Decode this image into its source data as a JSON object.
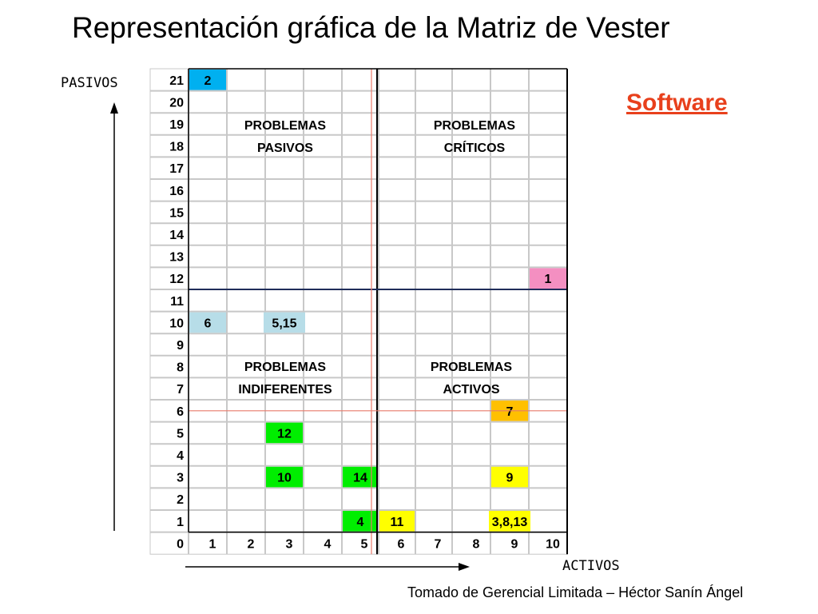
{
  "title": "Representación gráfica de la Matriz de Vester",
  "subtitle": "Software",
  "source": "Tomado de Gerencial Limitada – Héctor Sanín Ángel",
  "chart_data": {
    "type": "scatter",
    "title": "Representación gráfica de la Matriz de Vester",
    "xlabel": "ACTIVOS",
    "ylabel": "PASIVOS",
    "xlim": [
      0,
      10
    ],
    "ylim": [
      0,
      21
    ],
    "x_ticks": [
      "0",
      "1",
      "2",
      "3",
      "4",
      "5",
      "6",
      "7",
      "8",
      "9",
      "10"
    ],
    "y_ticks": [
      "0",
      "1",
      "2",
      "3",
      "4",
      "5",
      "6",
      "7",
      "8",
      "9",
      "10",
      "11",
      "12",
      "13",
      "14",
      "15",
      "16",
      "17",
      "18",
      "19",
      "20",
      "21"
    ],
    "grid": true,
    "quadrant_dividers": {
      "x": 5,
      "y": 12
    },
    "reference_lines": {
      "x": 5.5,
      "y": 6
    },
    "quadrants": [
      {
        "lines": [
          "PROBLEMAS",
          "PASIVOS"
        ],
        "x": 2.5,
        "y": 18.5
      },
      {
        "lines": [
          "PROBLEMAS",
          "CRÍTICOS"
        ],
        "x": 7.5,
        "y": 18.5
      },
      {
        "lines": [
          "PROBLEMAS",
          "INDIFERENTES"
        ],
        "x": 2.5,
        "y": 7.5
      },
      {
        "lines": [
          "PROBLEMAS",
          "ACTIVOS"
        ],
        "x": 7.5,
        "y": 7.5
      }
    ],
    "points": [
      {
        "label": "2",
        "x": 1,
        "y": 21,
        "color": "#00b0f0"
      },
      {
        "label": "1",
        "x": 10,
        "y": 12,
        "color": "#f48fc1"
      },
      {
        "label": "6",
        "x": 1,
        "y": 10,
        "color": "#b7dde8"
      },
      {
        "label": "5,15",
        "x": 3,
        "y": 10,
        "color": "#b7dde8"
      },
      {
        "label": "7",
        "x": 9,
        "y": 6,
        "color": "#ffc000"
      },
      {
        "label": "12",
        "x": 3,
        "y": 5,
        "color": "#00ee00"
      },
      {
        "label": "10",
        "x": 3,
        "y": 3,
        "color": "#00ee00"
      },
      {
        "label": "14",
        "x": 5,
        "y": 3,
        "color": "#00ee00"
      },
      {
        "label": "9",
        "x": 9,
        "y": 3,
        "color": "#ffff00"
      },
      {
        "label": "4",
        "x": 5,
        "y": 1,
        "color": "#00ee00"
      },
      {
        "label": "11",
        "x": 6,
        "y": 1,
        "color": "#ffff00"
      },
      {
        "label": "3,8,13",
        "x": 9,
        "y": 1,
        "color": "#ffff00"
      }
    ]
  }
}
